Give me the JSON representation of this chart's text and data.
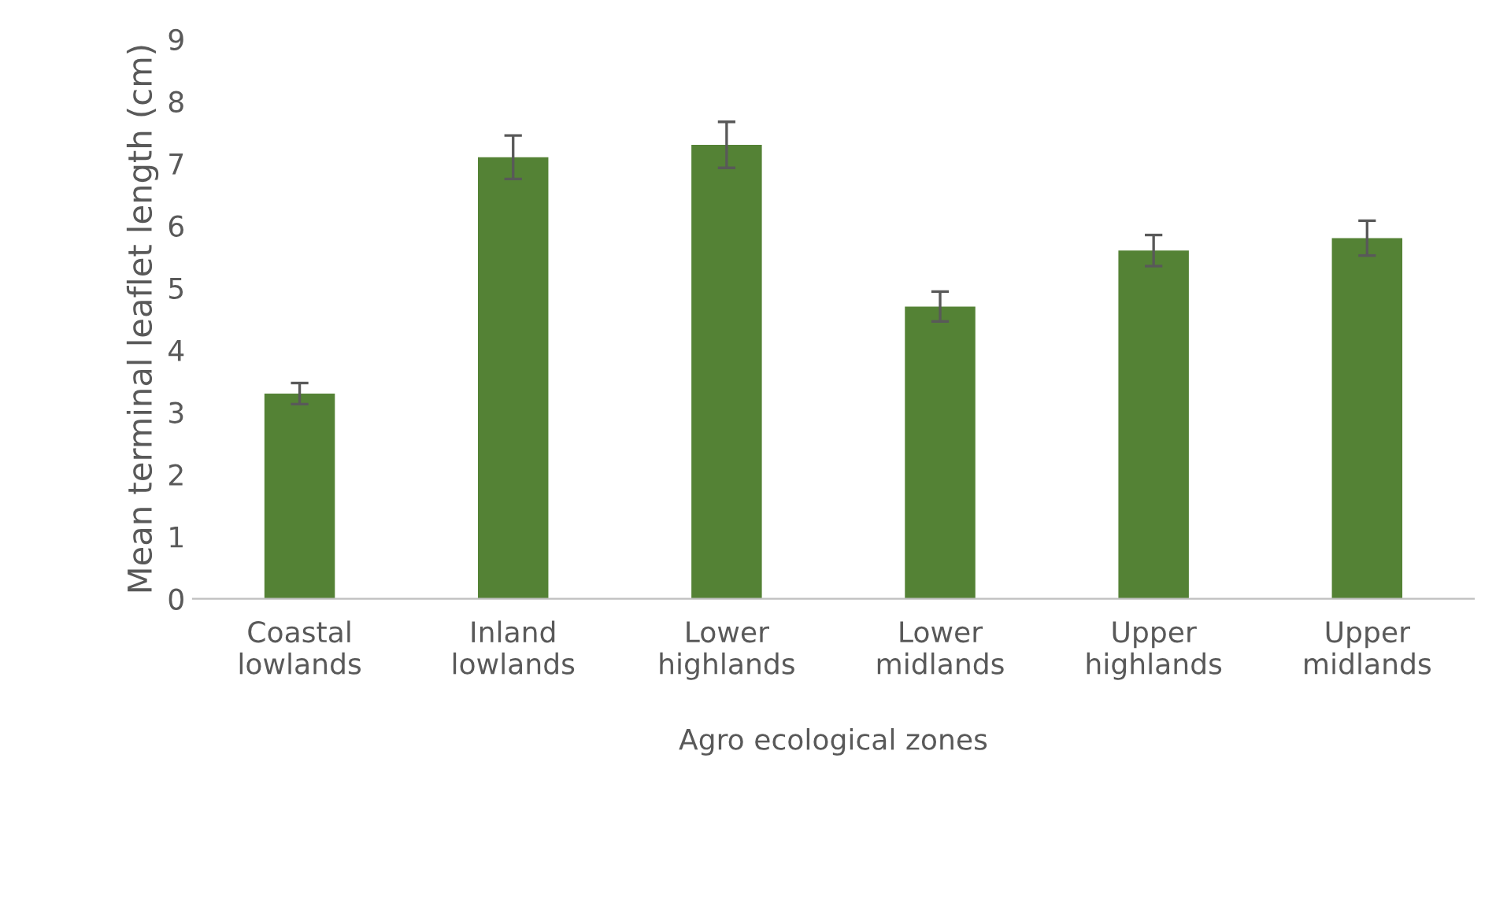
{
  "chart_data": {
    "type": "bar",
    "ylabel": "Mean terminal leaflet length (cm)",
    "xlabel": "Agro ecological zones",
    "categories": [
      "Coastal\nlowlands",
      "Inland\nlowlands",
      "Lower\nhighlands",
      "Lower\nmidlands",
      "Upper\nhighlands",
      "Upper\nmidlands"
    ],
    "values": [
      3.3,
      7.1,
      7.3,
      4.7,
      5.6,
      5.8
    ],
    "errors": [
      0.17,
      0.35,
      0.37,
      0.24,
      0.25,
      0.28
    ],
    "color": "#548235",
    "ylim": [
      0,
      9
    ],
    "yticks": [
      0,
      1,
      2,
      3,
      4,
      5,
      6,
      7,
      8,
      9
    ],
    "grid": false
  }
}
